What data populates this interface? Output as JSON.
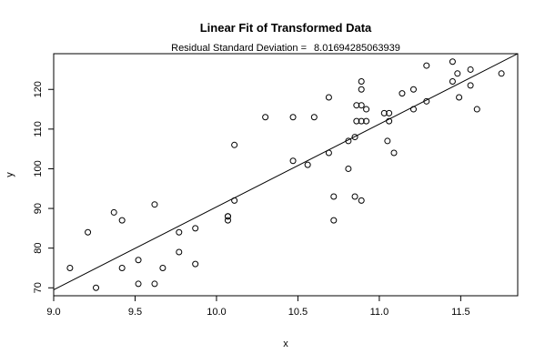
{
  "chart_data": {
    "type": "scatter",
    "title": "Linear Fit of Transformed Data",
    "subtitle_label": "Residual Standard Deviation =",
    "subtitle_value": "8.01694285063939",
    "xlabel": "x",
    "ylabel": "y",
    "xlim": [
      9.0,
      11.85
    ],
    "ylim": [
      68,
      129
    ],
    "xticks": [
      "9.0",
      "9.5",
      "10.0",
      "10.5",
      "11.0",
      "11.5"
    ],
    "yticks": [
      "70",
      "80",
      "90",
      "100",
      "110",
      "120"
    ],
    "grid": false,
    "legend": "none",
    "fit_line": {
      "x": [
        9.0,
        11.85
      ],
      "y": [
        69.5,
        129
      ]
    },
    "points": {
      "x": [
        9.1,
        9.21,
        9.26,
        9.37,
        9.42,
        9.42,
        9.52,
        9.52,
        9.62,
        9.62,
        9.67,
        9.77,
        9.77,
        9.87,
        9.87,
        10.07,
        10.07,
        10.07,
        10.11,
        10.11,
        10.3,
        10.47,
        10.47,
        10.56,
        10.6,
        10.69,
        10.69,
        10.72,
        10.72,
        10.81,
        10.81,
        10.85,
        10.85,
        10.86,
        10.86,
        10.89,
        10.89,
        10.89,
        10.89,
        10.89,
        10.92,
        10.92,
        11.03,
        11.05,
        11.06,
        11.06,
        11.09,
        11.14,
        11.21,
        11.21,
        11.29,
        11.29,
        11.45,
        11.45,
        11.48,
        11.49,
        11.56,
        11.56,
        11.6,
        11.75
      ],
      "y": [
        75,
        84,
        70,
        89,
        75,
        87,
        71,
        77,
        71,
        91,
        75,
        79,
        84,
        76,
        85,
        87,
        88,
        88,
        92,
        106,
        113,
        102,
        113,
        101,
        113,
        104,
        118,
        87,
        93,
        100,
        107,
        93,
        108,
        112,
        116,
        92,
        112,
        116,
        120,
        122,
        112,
        115,
        114,
        107,
        112,
        114,
        104,
        119,
        115,
        120,
        117,
        126,
        122,
        127,
        124,
        118,
        121,
        125,
        115,
        124
      ]
    }
  }
}
